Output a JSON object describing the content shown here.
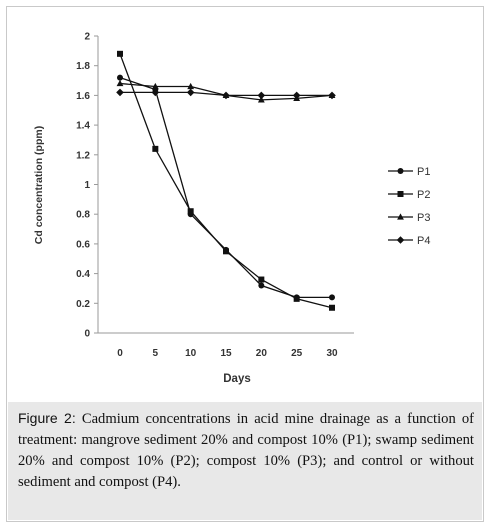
{
  "chart_data": {
    "type": "line",
    "title": "",
    "xlabel": "Days",
    "ylabel": "Cd concentration (ppm)",
    "x": [
      0,
      5,
      10,
      15,
      20,
      25,
      30
    ],
    "ylim": [
      0,
      2
    ],
    "yticks": [
      "0",
      "0.2",
      "0.4",
      "0.6",
      "0.8",
      "1",
      "1.2",
      "1.4",
      "1.6",
      "1.8",
      "2"
    ],
    "xticks": [
      "0",
      "5",
      "10",
      "15",
      "20",
      "25",
      "30"
    ],
    "grid": false,
    "legend_position": "right",
    "series": [
      {
        "name": "P1",
        "marker": "circle",
        "values": [
          1.72,
          1.64,
          0.8,
          0.56,
          0.32,
          0.24,
          0.24
        ]
      },
      {
        "name": "P2",
        "marker": "square",
        "values": [
          1.88,
          1.24,
          0.82,
          0.55,
          0.36,
          0.23,
          0.17
        ]
      },
      {
        "name": "P3",
        "marker": "triangle",
        "values": [
          1.68,
          1.66,
          1.66,
          1.6,
          1.57,
          1.58,
          1.6
        ]
      },
      {
        "name": "P4",
        "marker": "diamond",
        "values": [
          1.62,
          1.62,
          1.62,
          1.6,
          1.6,
          1.6,
          1.6
        ]
      }
    ],
    "line_color": "#111111"
  },
  "caption": {
    "label": "Figure 2:",
    "text": "Cadmium concentrations in acid mine drainage as a function of treatment: mangrove sediment 20% and compost 10% (P1); swamp sediment 20% and compost 10% (P2); compost 10% (P3); and control or without sediment and compost (P4)."
  }
}
